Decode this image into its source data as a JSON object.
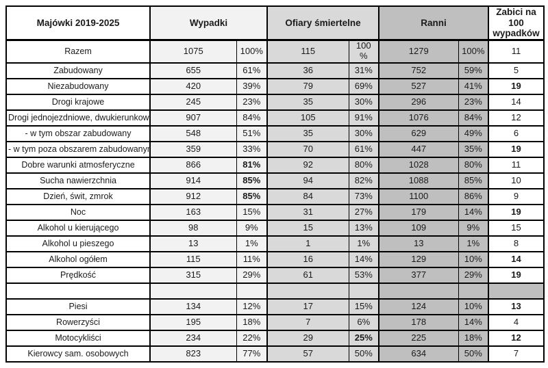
{
  "colors": {
    "wypadki_bg": "#f2f2f2",
    "ofiary_bg": "#d9d9d9",
    "ranni_bg": "#bfbfbf",
    "zabici_bg": "#ffffff",
    "label_bg": "#ffffff",
    "border": "#000000",
    "text": "#1a1a1a"
  },
  "chart_data": {
    "type": "table",
    "title": "Majówki 2019-2025",
    "header": {
      "label": "Majówki 2019-2025",
      "groups": [
        {
          "label": "Wypadki",
          "span": 2
        },
        {
          "label": "Ofiary śmiertelne",
          "span": 2
        },
        {
          "label": "Ranni",
          "span": 2
        },
        {
          "label": "Zabici na 100 wypadków",
          "span": 1
        }
      ]
    },
    "columns": [
      "Majówki 2019-2025",
      "Wypadki",
      "Wypadki %",
      "Ofiary śmiertelne",
      "Ofiary śmiertelne %",
      "Ranni",
      "Ranni %",
      "Zabici na 100 wypadków"
    ],
    "rows": [
      {
        "label": "Razem",
        "cells": [
          "1075",
          "100%",
          "115",
          "100\n%",
          "1279",
          "100%",
          "11"
        ],
        "bold_cells": []
      },
      {
        "label": "Zabudowany",
        "cells": [
          "655",
          "61%",
          "36",
          "31%",
          "752",
          "59%",
          "5"
        ],
        "bold_cells": []
      },
      {
        "label": "Niezabudowany",
        "cells": [
          "420",
          "39%",
          "79",
          "69%",
          "527",
          "41%",
          "19"
        ],
        "bold_cells": [
          6
        ]
      },
      {
        "label": "Drogi krajowe",
        "cells": [
          "245",
          "23%",
          "35",
          "30%",
          "296",
          "23%",
          "14"
        ],
        "bold_cells": []
      },
      {
        "label": "Drogi jednojezdniowe, dwukierunkowe",
        "cells": [
          "907",
          "84%",
          "105",
          "91%",
          "1076",
          "84%",
          "12"
        ],
        "bold_cells": []
      },
      {
        "label": "- w tym obszar zabudowany",
        "cells": [
          "548",
          "51%",
          "35",
          "30%",
          "629",
          "49%",
          "6"
        ],
        "bold_cells": []
      },
      {
        "label": "- w tym poza obszarem zabudowanym",
        "cells": [
          "359",
          "33%",
          "70",
          "61%",
          "447",
          "35%",
          "19"
        ],
        "bold_cells": [
          6
        ]
      },
      {
        "label": "Dobre warunki atmosferyczne",
        "cells": [
          "866",
          "81%",
          "92",
          "80%",
          "1028",
          "80%",
          "11"
        ],
        "bold_cells": [
          1
        ]
      },
      {
        "label": "Sucha nawierzchnia",
        "cells": [
          "914",
          "85%",
          "94",
          "82%",
          "1088",
          "85%",
          "10"
        ],
        "bold_cells": [
          1
        ]
      },
      {
        "label": "Dzień, świt, zmrok",
        "cells": [
          "912",
          "85%",
          "84",
          "73%",
          "1100",
          "86%",
          "9"
        ],
        "bold_cells": [
          1
        ]
      },
      {
        "label": "Noc",
        "cells": [
          "163",
          "15%",
          "31",
          "27%",
          "179",
          "14%",
          "19"
        ],
        "bold_cells": [
          6
        ]
      },
      {
        "label": "Alkohol u kierującego",
        "cells": [
          "98",
          "9%",
          "15",
          "13%",
          "109",
          "9%",
          "15"
        ],
        "bold_cells": []
      },
      {
        "label": "Alkohol u pieszego",
        "cells": [
          "13",
          "1%",
          "1",
          "1%",
          "13",
          "1%",
          "8"
        ],
        "bold_cells": []
      },
      {
        "label": "Alkohol ogółem",
        "cells": [
          "115",
          "11%",
          "16",
          "14%",
          "129",
          "10%",
          "14"
        ],
        "bold_cells": [
          6
        ]
      },
      {
        "label": "Prędkość",
        "cells": [
          "315",
          "29%",
          "61",
          "53%",
          "377",
          "29%",
          "19"
        ],
        "bold_cells": [
          6
        ]
      },
      {
        "label": "",
        "cells": [
          "",
          "",
          "",
          "",
          "",
          "",
          ""
        ],
        "bold_cells": []
      },
      {
        "label": "Piesi",
        "cells": [
          "134",
          "12%",
          "17",
          "15%",
          "124",
          "10%",
          "13"
        ],
        "bold_cells": [
          6
        ]
      },
      {
        "label": "Rowerzyści",
        "cells": [
          "195",
          "18%",
          "7",
          "6%",
          "178",
          "14%",
          "4"
        ],
        "bold_cells": []
      },
      {
        "label": "Motocykliści",
        "cells": [
          "234",
          "22%",
          "29",
          "25%",
          "225",
          "18%",
          "12"
        ],
        "bold_cells": [
          3,
          6
        ]
      },
      {
        "label": "Kierowcy sam. osobowych",
        "cells": [
          "823",
          "77%",
          "57",
          "50%",
          "634",
          "50%",
          "7"
        ],
        "bold_cells": []
      }
    ]
  }
}
